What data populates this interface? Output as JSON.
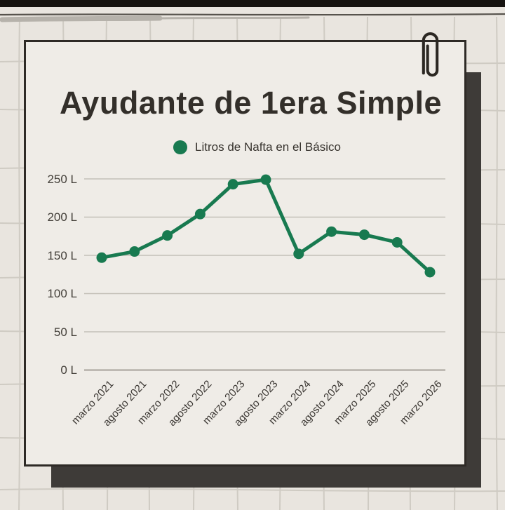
{
  "colors": {
    "accent_green": "#187a50",
    "ink": "#332f2a",
    "paper_card": "#efece7",
    "background": "#e9e5df",
    "shadow_block": "#3e3b38",
    "top_bar": "#161310",
    "gridline": "#c4c0b8",
    "zero_line": "#a5a099"
  },
  "icons": {
    "paperclip": "paperclip-icon",
    "legend_marker": "filled-circle"
  },
  "chart_data": {
    "type": "line",
    "title": "Ayudante de 1era Simple",
    "x": [
      "marzo 2021",
      "agosto 2021",
      "marzo 2022",
      "agosto 2022",
      "marzo 2023",
      "agosto 2023",
      "marzo 2024",
      "agosto 2024",
      "marzo 2025",
      "agosto 2025",
      "marzo 2026"
    ],
    "series": [
      {
        "name": "Litros de Nafta en el Básico",
        "color": "#187a50",
        "values": [
          147,
          155,
          176,
          204,
          243,
          249,
          152,
          181,
          177,
          167,
          128
        ]
      }
    ],
    "yticks": [
      0,
      50,
      100,
      150,
      200,
      250
    ],
    "y_unit": "L",
    "y_tick_labels": [
      "0 L",
      "50 L",
      "100 L",
      "150 L",
      "200 L",
      "250 L"
    ],
    "ylim": [
      0,
      275
    ],
    "grid": true,
    "legend_position": "top-center",
    "x_tick_rotation_deg": -47
  }
}
